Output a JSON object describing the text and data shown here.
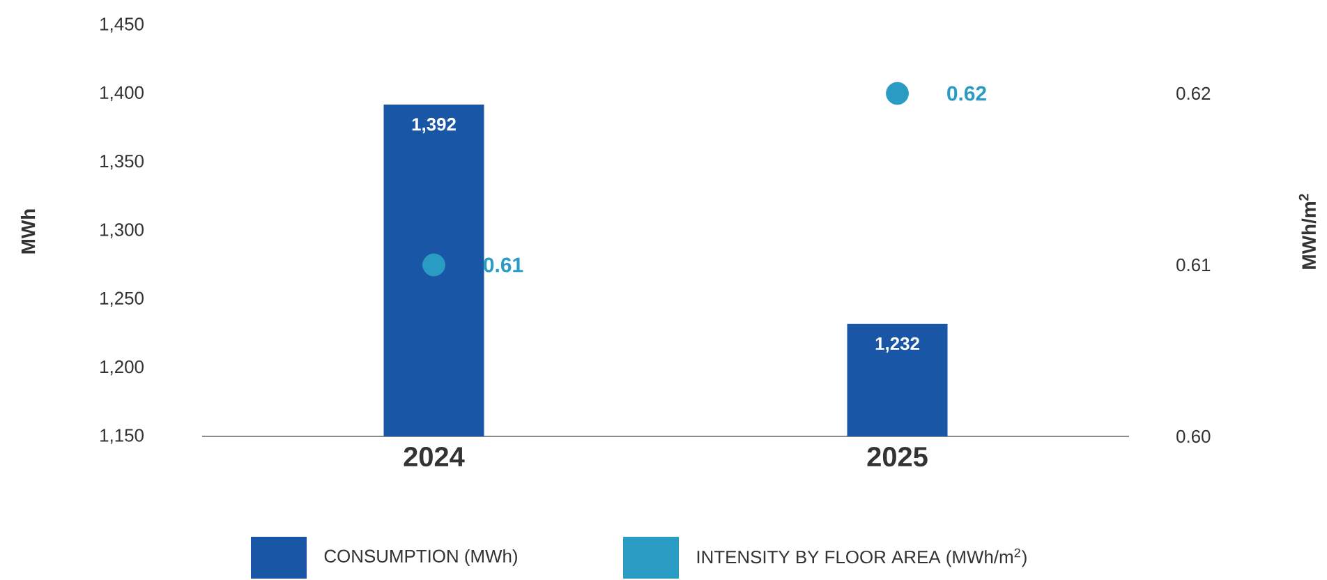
{
  "chart_data": {
    "type": "bar",
    "categories": [
      "2024",
      "2025"
    ],
    "ylabel": "MWh",
    "y2label": "MWh/m$^{2}$",
    "ylim": [
      1150,
      1450
    ],
    "yticks": [
      {
        "value": 1150,
        "label": "1,150"
      },
      {
        "value": 1200,
        "label": "1,200"
      },
      {
        "value": 1250,
        "label": "1,250"
      },
      {
        "value": 1300,
        "label": "1,300"
      },
      {
        "value": 1350,
        "label": "1,350"
      },
      {
        "value": 1400,
        "label": "1,400"
      },
      {
        "value": 1450,
        "label": "1,450"
      }
    ],
    "y2lim": [
      0.6,
      0.62
    ],
    "y2ticks": [
      {
        "value": 0.6,
        "label": "0.60"
      },
      {
        "value": 0.61,
        "label": "0.61"
      },
      {
        "value": 0.62,
        "label": "0.62"
      }
    ],
    "legend": "bottom",
    "series": [
      {
        "name": "CONSUMPTION (MWh)",
        "color": "#1a56a6",
        "values": [
          1392,
          1232
        ],
        "value_labels": [
          "1,392",
          "1,232"
        ]
      },
      {
        "name": "INTENSITY BY FLOOR AREA (MWh/m$^{2}$)",
        "type": "scatter",
        "axis": "y2",
        "color": "#2a9cc4",
        "values": [
          0.61,
          0.62
        ],
        "value_labels": [
          "0.61",
          "0.62"
        ]
      }
    ]
  }
}
